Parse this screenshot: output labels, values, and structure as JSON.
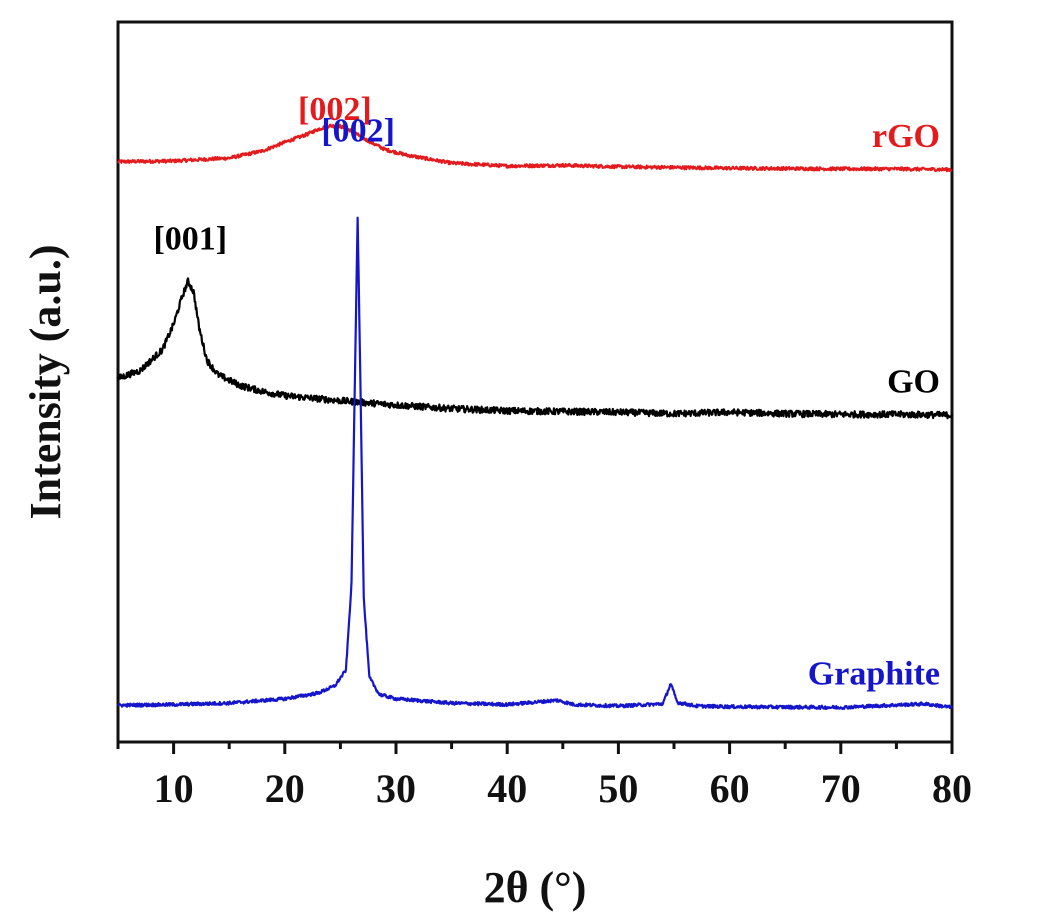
{
  "chart_data": {
    "type": "line",
    "xlabel": "2θ (°)",
    "ylabel": "Intensity (a.u.)",
    "xlim": [
      5,
      80
    ],
    "ylim": [
      0,
      100
    ],
    "xticks": [
      "10",
      "20",
      "30",
      "40",
      "50",
      "60",
      "70",
      "80"
    ],
    "grid": false,
    "legend": "inline labels at right end of each trace",
    "series": [
      {
        "name": "rGO",
        "color": "#e41a1c",
        "label_x": 72,
        "peak_labels": [
          {
            "text": "[002]",
            "x": 24.5,
            "y": 85
          }
        ],
        "points": [
          [
            5,
            80.6
          ],
          [
            10,
            80.7
          ],
          [
            15,
            81.1
          ],
          [
            18,
            82.1
          ],
          [
            20,
            83.3
          ],
          [
            22,
            84.4
          ],
          [
            23,
            85.1
          ],
          [
            24,
            85.6
          ],
          [
            25,
            85.5
          ],
          [
            26,
            84.9
          ],
          [
            27,
            83.9
          ],
          [
            29,
            82.3
          ],
          [
            31,
            81.5
          ],
          [
            35,
            80.4
          ],
          [
            40,
            80.0
          ],
          [
            45,
            80.1
          ],
          [
            50,
            79.9
          ],
          [
            55,
            79.8
          ],
          [
            60,
            79.7
          ],
          [
            70,
            79.6
          ],
          [
            75,
            79.6
          ],
          [
            80,
            79.5
          ]
        ]
      },
      {
        "name": "GO",
        "color": "#000000",
        "label_x": 75,
        "peak_labels": [
          {
            "text": "[001]",
            "x": 11.5,
            "y": 67
          }
        ],
        "points": [
          [
            5,
            50.5
          ],
          [
            7,
            51.6
          ],
          [
            9,
            54.5
          ],
          [
            10,
            58.0
          ],
          [
            10.8,
            62.0
          ],
          [
            11.3,
            64.0
          ],
          [
            11.8,
            62.5
          ],
          [
            12.3,
            57.5
          ],
          [
            13,
            53.0
          ],
          [
            14,
            51.0
          ],
          [
            16,
            49.5
          ],
          [
            18,
            48.7
          ],
          [
            20,
            48.1
          ],
          [
            25,
            47.4
          ],
          [
            30,
            46.8
          ],
          [
            35,
            46.3
          ],
          [
            40,
            46.0
          ],
          [
            45,
            45.9
          ],
          [
            50,
            45.8
          ],
          [
            55,
            45.6
          ],
          [
            60,
            45.8
          ],
          [
            65,
            45.6
          ],
          [
            70,
            45.5
          ],
          [
            75,
            45.5
          ],
          [
            80,
            45.4
          ]
        ]
      },
      {
        "name": "Graphite",
        "color": "#1515cc",
        "label_x": 72,
        "peak_labels": [
          {
            "text": "[002]",
            "x": 26.6,
            "y": 82
          }
        ],
        "points": [
          [
            5,
            5.1
          ],
          [
            10,
            5.2
          ],
          [
            15,
            5.4
          ],
          [
            20,
            6.0
          ],
          [
            23,
            6.8
          ],
          [
            24.5,
            7.8
          ],
          [
            25.5,
            10.0
          ],
          [
            26,
            22.0
          ],
          [
            26.3,
            50.0
          ],
          [
            26.55,
            73.0
          ],
          [
            26.8,
            50.0
          ],
          [
            27.1,
            20.0
          ],
          [
            27.6,
            9.0
          ],
          [
            28.5,
            6.6
          ],
          [
            30,
            6.0
          ],
          [
            35,
            5.4
          ],
          [
            40,
            5.2
          ],
          [
            44.5,
            5.8
          ],
          [
            46,
            5.2
          ],
          [
            50,
            5.0
          ],
          [
            54,
            5.3
          ],
          [
            54.7,
            8.1
          ],
          [
            55.3,
            5.5
          ],
          [
            57,
            5.0
          ],
          [
            60,
            4.9
          ],
          [
            70,
            4.8
          ],
          [
            77.5,
            5.3
          ],
          [
            80,
            4.8
          ]
        ]
      }
    ]
  }
}
